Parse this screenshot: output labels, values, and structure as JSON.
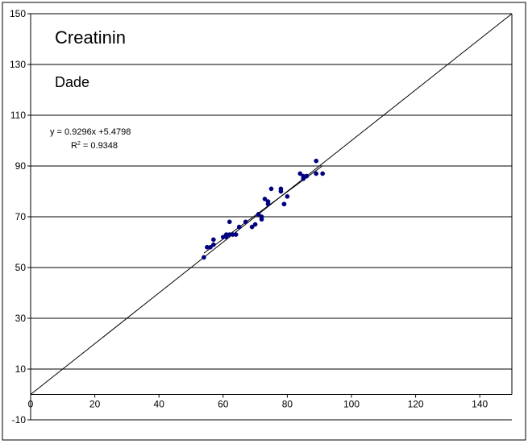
{
  "chart_data": {
    "type": "scatter",
    "title": "Creatinin",
    "subtitle": "Dade",
    "xlabel": "",
    "ylabel": "",
    "xlim": [
      0,
      150
    ],
    "ylim": [
      -10,
      150
    ],
    "x_ticks": [
      0,
      20,
      40,
      60,
      80,
      100,
      120,
      140
    ],
    "y_ticks": [
      -10,
      10,
      30,
      50,
      70,
      90,
      110,
      130,
      150
    ],
    "grid": "horizontal",
    "legend": "none",
    "colors": {
      "points": "#000080",
      "lines": "#000000",
      "grid": "#000000"
    },
    "trendline": {
      "slope": 0.9296,
      "intercept": 5.4798,
      "x_range": [
        54,
        91
      ],
      "equation_text": "y = 0.9296x +5.4798",
      "r2_label": "R",
      "r2_exponent": "2",
      "r2_value_text": " = 0.9348"
    },
    "identity_line": {
      "from": [
        0,
        0
      ],
      "to": [
        150,
        150
      ]
    },
    "series": [
      {
        "x": [
          54,
          55,
          56,
          57,
          57,
          60,
          61,
          61,
          62,
          62,
          63,
          64,
          65,
          67,
          69,
          70,
          71,
          72,
          72,
          73,
          74,
          74,
          75,
          78,
          78,
          79,
          79,
          80,
          84,
          85,
          85,
          86,
          86,
          89,
          89,
          91
        ],
        "y": [
          54,
          58,
          58,
          59,
          61,
          62,
          63,
          62,
          68,
          63,
          63,
          63,
          66,
          68,
          66,
          67,
          71,
          70,
          69,
          77,
          75,
          76,
          81,
          80,
          81,
          75,
          75,
          78,
          87,
          86,
          85,
          86,
          86,
          92,
          87,
          87
        ]
      }
    ]
  }
}
